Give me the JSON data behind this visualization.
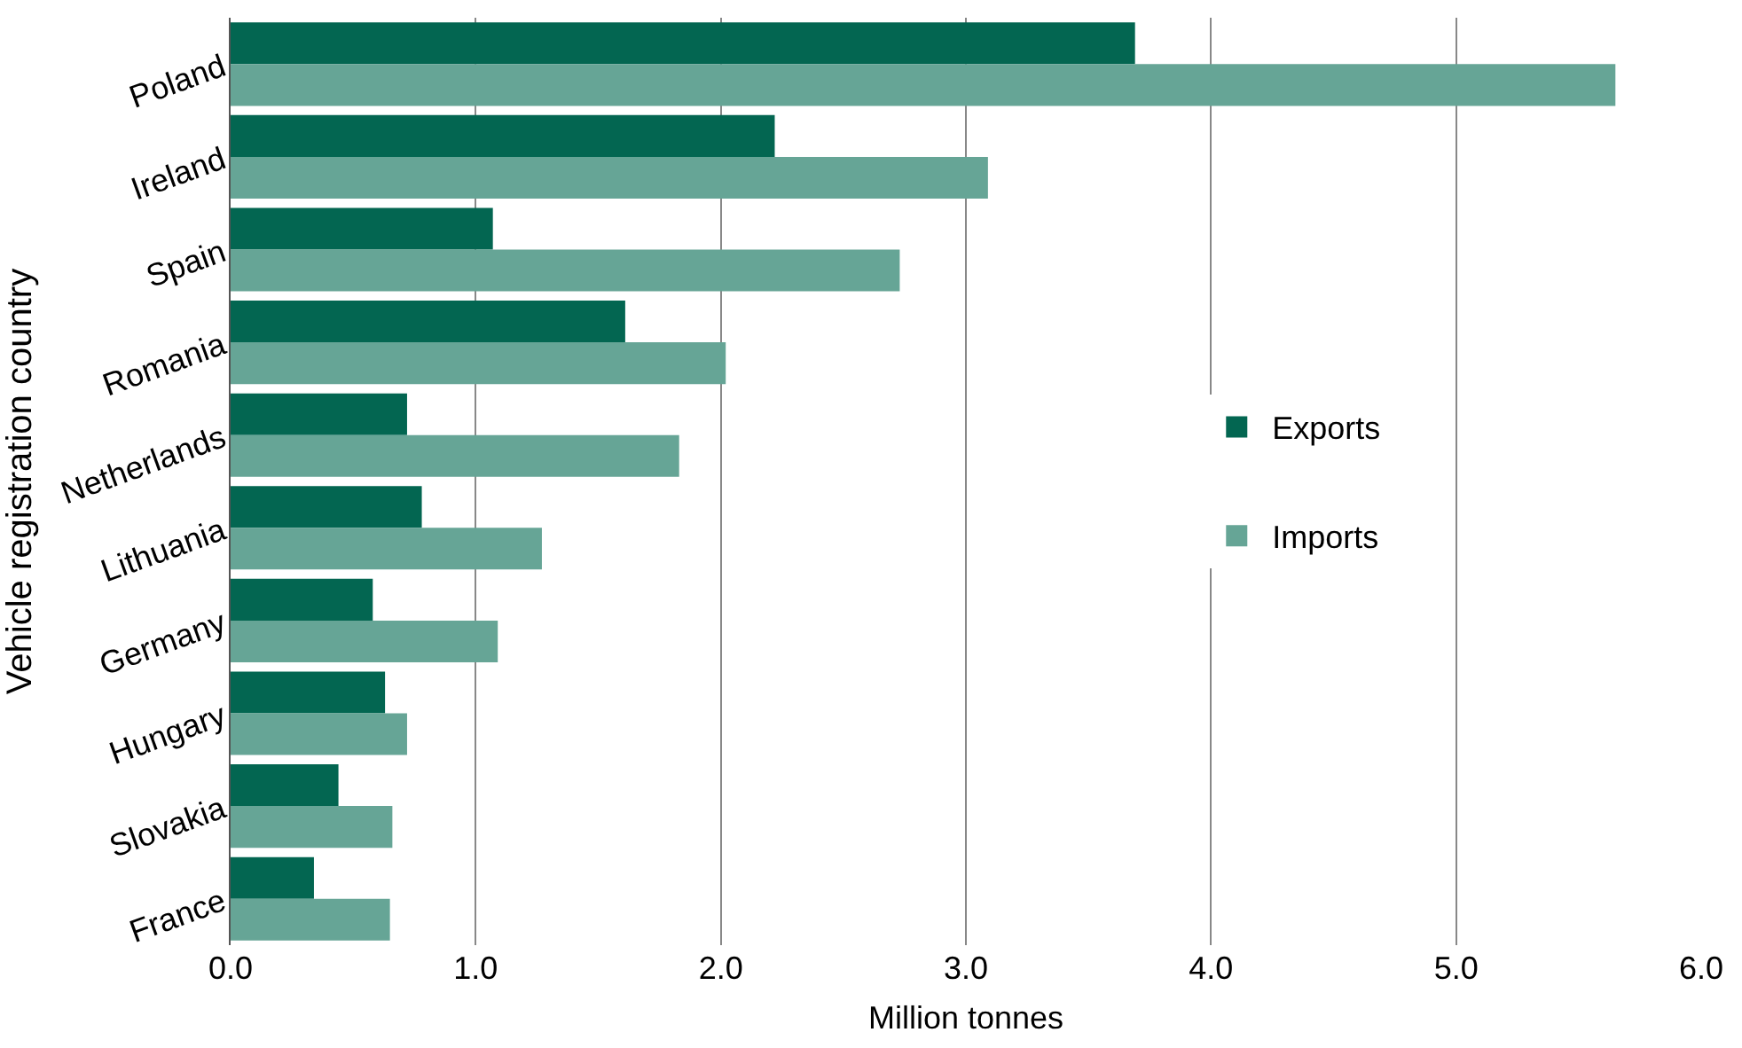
{
  "chart_data": {
    "type": "bar",
    "orientation": "horizontal",
    "categories": [
      "Poland",
      "Ireland",
      "Spain",
      "Romania",
      "Netherlands",
      "Lithuania",
      "Germany",
      "Hungary",
      "Slovakia",
      "France"
    ],
    "series": [
      {
        "name": "Exports",
        "color": "#036651",
        "values": [
          3.69,
          2.22,
          1.07,
          1.61,
          0.72,
          0.78,
          0.58,
          0.63,
          0.44,
          0.34
        ]
      },
      {
        "name": "Imports",
        "color": "#66a596",
        "values": [
          5.65,
          3.09,
          2.73,
          2.02,
          1.83,
          1.27,
          1.09,
          0.72,
          0.66,
          0.65
        ]
      }
    ],
    "xlabel": "Million tonnes",
    "ylabel": "Vehicle registration country",
    "xlim": [
      0,
      6
    ],
    "xticks": [
      {
        "value": 0,
        "label": "0.0"
      },
      {
        "value": 1,
        "label": "1.0"
      },
      {
        "value": 2,
        "label": "2.0"
      },
      {
        "value": 3,
        "label": "3.0"
      },
      {
        "value": 4,
        "label": "4.0"
      },
      {
        "value": 5,
        "label": "5.0"
      },
      {
        "value": 6,
        "label": "6.0"
      }
    ],
    "grid": "x",
    "legend": "right"
  }
}
